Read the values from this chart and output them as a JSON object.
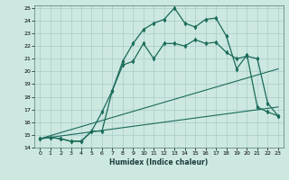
{
  "xlabel": "Humidex (Indice chaleur)",
  "bg_color": "#cce8e0",
  "line_color": "#1a6b5a",
  "grid_color": "#aacccc",
  "xlim": [
    -0.5,
    23.5
  ],
  "ylim": [
    14,
    25.2
  ],
  "xticks": [
    0,
    1,
    2,
    3,
    4,
    5,
    6,
    7,
    8,
    9,
    10,
    11,
    12,
    13,
    14,
    15,
    16,
    17,
    18,
    19,
    20,
    21,
    22,
    23
  ],
  "yticks": [
    14,
    15,
    16,
    17,
    18,
    19,
    20,
    21,
    22,
    23,
    24,
    25
  ],
  "line1_x": [
    0,
    1,
    2,
    3,
    4,
    5,
    6,
    7,
    8,
    9,
    10,
    11,
    12,
    13,
    14,
    15,
    16,
    17,
    18,
    19,
    20,
    21,
    22,
    23
  ],
  "line1_y": [
    14.7,
    14.8,
    14.7,
    14.5,
    14.5,
    15.3,
    15.3,
    18.5,
    20.8,
    22.2,
    23.3,
    23.8,
    24.1,
    25.0,
    23.8,
    23.5,
    24.1,
    24.2,
    22.8,
    20.2,
    21.3,
    17.2,
    16.8,
    16.5
  ],
  "line2_x": [
    0,
    1,
    2,
    3,
    4,
    5,
    6,
    7,
    8,
    9,
    10,
    11,
    12,
    13,
    14,
    15,
    16,
    17,
    18,
    19,
    20,
    21,
    22,
    23
  ],
  "line2_y": [
    14.7,
    14.8,
    14.7,
    14.5,
    14.5,
    15.3,
    16.8,
    18.5,
    20.5,
    20.8,
    22.2,
    21.0,
    22.2,
    22.2,
    22.0,
    22.5,
    22.2,
    22.3,
    21.5,
    21.0,
    21.2,
    21.0,
    17.5,
    16.5
  ],
  "line3_x": [
    0,
    23
  ],
  "line3_y": [
    14.7,
    17.2
  ],
  "line4_x": [
    0,
    23
  ],
  "line4_y": [
    14.7,
    20.2
  ]
}
